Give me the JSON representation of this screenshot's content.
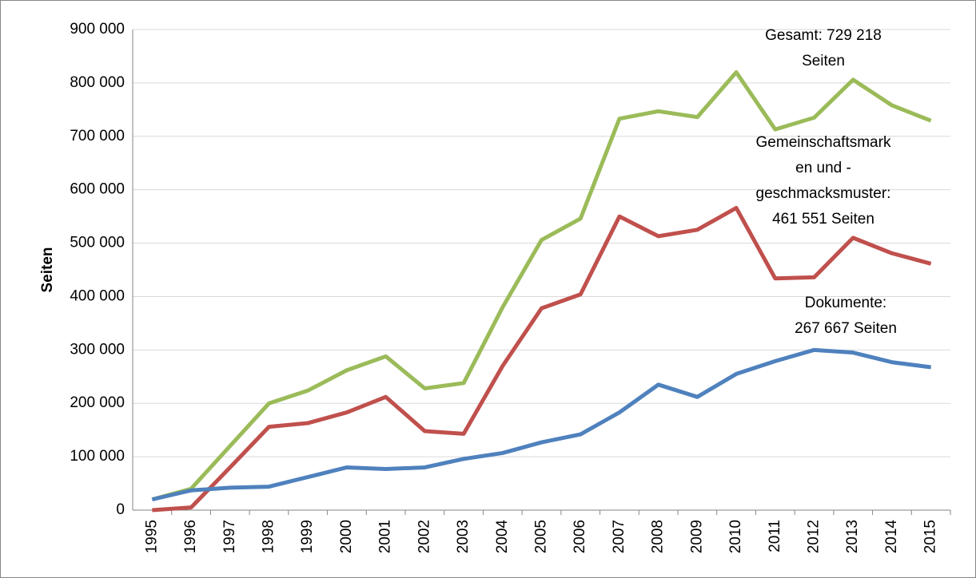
{
  "chart_data": {
    "type": "line",
    "y_label": "Seiten",
    "categories": [
      "1995",
      "1996",
      "1997",
      "1998",
      "1999",
      "2000",
      "2001",
      "2002",
      "2003",
      "2004",
      "2005",
      "2006",
      "2007",
      "2008",
      "2009",
      "2010",
      "2011",
      "2012",
      "2013",
      "2014",
      "2015"
    ],
    "series": [
      {
        "color": "#9bbb59",
        "values": [
          20000,
          40000,
          120000,
          200000,
          224000,
          262000,
          288000,
          228000,
          238000,
          380000,
          506000,
          546000,
          733000,
          747000,
          736000,
          820000,
          713000,
          735000,
          806000,
          758000,
          729218
        ]
      },
      {
        "color": "#c0504d",
        "values": [
          0,
          5000,
          80000,
          156000,
          163000,
          183000,
          212000,
          148000,
          143000,
          270000,
          378000,
          404000,
          550000,
          513000,
          525000,
          566000,
          434000,
          436000,
          510000,
          481000,
          461551
        ]
      },
      {
        "color": "#4f81bd",
        "values": [
          20000,
          37000,
          42000,
          44000,
          62000,
          80000,
          77000,
          80000,
          96000,
          107000,
          127000,
          142000,
          183000,
          235000,
          212000,
          255000,
          279000,
          300000,
          295000,
          277000,
          267667
        ]
      }
    ],
    "annotations": [
      {
        "lines": [
          "Gesamt: 729 218",
          "Seiten"
        ]
      },
      {
        "lines": [
          "Gemeinschaftsmark",
          "en und -",
          "geschmacksmuster:",
          "461 551 Seiten"
        ]
      },
      {
        "lines": [
          "Dokumente:",
          "267 667 Seiten"
        ]
      }
    ],
    "ylim": [
      0,
      900000
    ],
    "yticks": [
      0,
      {
        "value": 100000,
        "label": "100 000"
      },
      {
        "value": 200000,
        "label": "200 000"
      },
      {
        "value": 300000,
        "label": "300 000"
      },
      {
        "value": 400000,
        "label": "400 000"
      },
      {
        "value": 500000,
        "label": "500 000"
      },
      {
        "value": 600000,
        "label": "600 000"
      },
      {
        "value": 700000,
        "label": "700 000"
      },
      {
        "value": 800000,
        "label": "800 000"
      },
      {
        "value": 900000,
        "label": "900 000"
      }
    ],
    "grid": true
  }
}
